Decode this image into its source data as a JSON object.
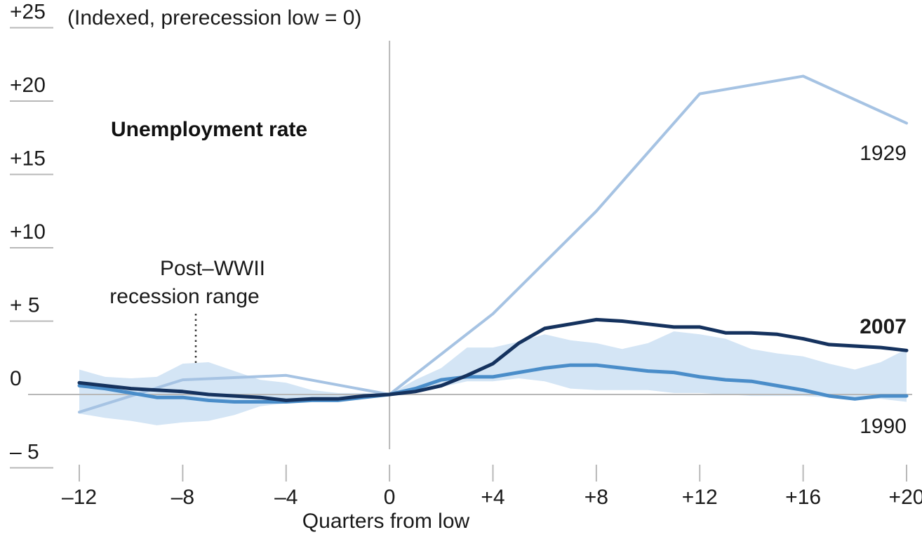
{
  "chart_data": {
    "type": "line",
    "ylabel": "(Indexed, prerecession low = 0)",
    "xlabel": "Quarters from low",
    "annotation_title": "Unemployment rate",
    "band_label_line1": "Post–WWII",
    "band_label_line2": "recession range",
    "ylim": [
      -5,
      25
    ],
    "xlim": [
      -12,
      20
    ],
    "x_ticks": [
      -12,
      -8,
      -4,
      0,
      4,
      8,
      12,
      16,
      20
    ],
    "x_tick_labels": [
      "–12",
      "–8",
      "–4",
      "0",
      "+4",
      "+8",
      "+12",
      "+16",
      "+20"
    ],
    "y_ticks": [
      25,
      20,
      15,
      10,
      5,
      0,
      -5
    ],
    "y_tick_labels": [
      "+25",
      "+20",
      "+15",
      "+10",
      "+ 5",
      "0",
      "– 5"
    ],
    "grid": false,
    "x": [
      -12,
      -11,
      -10,
      -9,
      -8,
      -7,
      -6,
      -5,
      -4,
      -3,
      -2,
      -1,
      0,
      1,
      2,
      3,
      4,
      5,
      6,
      7,
      8,
      9,
      10,
      11,
      12,
      13,
      14,
      15,
      16,
      17,
      18,
      19,
      20
    ],
    "band": {
      "name": "Post–WWII recession range",
      "color": "#d4e5f5",
      "upper": [
        1.7,
        1.2,
        1.1,
        1.2,
        2.1,
        2.2,
        1.6,
        1.0,
        0.8,
        0.3,
        0.1,
        0.1,
        0,
        1.0,
        1.8,
        3.2,
        3.2,
        3.6,
        4.1,
        3.7,
        3.5,
        3.1,
        3.5,
        4.3,
        4.1,
        3.8,
        3.1,
        2.8,
        2.6,
        2.1,
        1.7,
        2.2,
        3.1
      ],
      "lower": [
        -1.3,
        -1.6,
        -1.8,
        -2.1,
        -1.9,
        -1.8,
        -1.4,
        -0.8,
        -0.6,
        -0.5,
        -0.3,
        -0.3,
        0,
        0.2,
        0.5,
        0.9,
        0.9,
        1.1,
        0.9,
        0.4,
        0.3,
        0.3,
        0.3,
        0.1,
        0.1,
        0.0,
        -0.1,
        -0.1,
        -0.1,
        -0.2,
        -0.3,
        -0.3,
        -0.5
      ]
    },
    "series": [
      {
        "name": "1929",
        "color": "#a6c3e3",
        "width": 4,
        "x": [
          -12,
          -8,
          -4,
          0,
          4,
          8,
          12,
          16,
          20
        ],
        "values": [
          -1.2,
          1.0,
          1.3,
          0,
          5.5,
          12.5,
          20.5,
          21.7,
          18.5
        ]
      },
      {
        "name": "1990",
        "color": "#4a8dc9",
        "width": 5,
        "x": [
          -12,
          -11,
          -10,
          -9,
          -8,
          -7,
          -6,
          -5,
          -4,
          -3,
          -2,
          -1,
          0,
          1,
          2,
          3,
          4,
          5,
          6,
          7,
          8,
          9,
          10,
          11,
          12,
          13,
          14,
          15,
          16,
          17,
          18,
          19,
          20
        ],
        "values": [
          0.6,
          0.4,
          0.1,
          -0.2,
          -0.2,
          -0.4,
          -0.5,
          -0.5,
          -0.5,
          -0.4,
          -0.4,
          -0.2,
          0,
          0.4,
          1.0,
          1.2,
          1.2,
          1.5,
          1.8,
          2.0,
          2.0,
          1.8,
          1.6,
          1.5,
          1.2,
          1.0,
          0.9,
          0.6,
          0.3,
          -0.1,
          -0.3,
          -0.1,
          -0.1
        ]
      },
      {
        "name": "2007",
        "color": "#15325e",
        "width": 5,
        "x": [
          -12,
          -11,
          -10,
          -9,
          -8,
          -7,
          -6,
          -5,
          -4,
          -3,
          -2,
          -1,
          0,
          1,
          2,
          3,
          4,
          5,
          6,
          7,
          8,
          9,
          10,
          11,
          12,
          13,
          14,
          15,
          16,
          17,
          18,
          19,
          20
        ],
        "values": [
          0.8,
          0.6,
          0.4,
          0.3,
          0.2,
          0.0,
          -0.1,
          -0.2,
          -0.4,
          -0.3,
          -0.3,
          -0.1,
          0,
          0.2,
          0.6,
          1.3,
          2.1,
          3.5,
          4.5,
          4.8,
          5.1,
          5.0,
          4.8,
          4.6,
          4.6,
          4.2,
          4.2,
          4.1,
          3.8,
          3.4,
          3.3,
          3.2,
          3.0
        ]
      }
    ],
    "series_labels": [
      {
        "text": "1929",
        "series": "1929",
        "bold": false
      },
      {
        "text": "2007",
        "series": "2007",
        "bold": true
      },
      {
        "text": "1990",
        "series": "1990",
        "bold": false
      }
    ],
    "colors": {
      "axis": "#b8b8b8",
      "tick_text": "#1a1a1a",
      "band_fill": "#d4e5f5"
    }
  }
}
